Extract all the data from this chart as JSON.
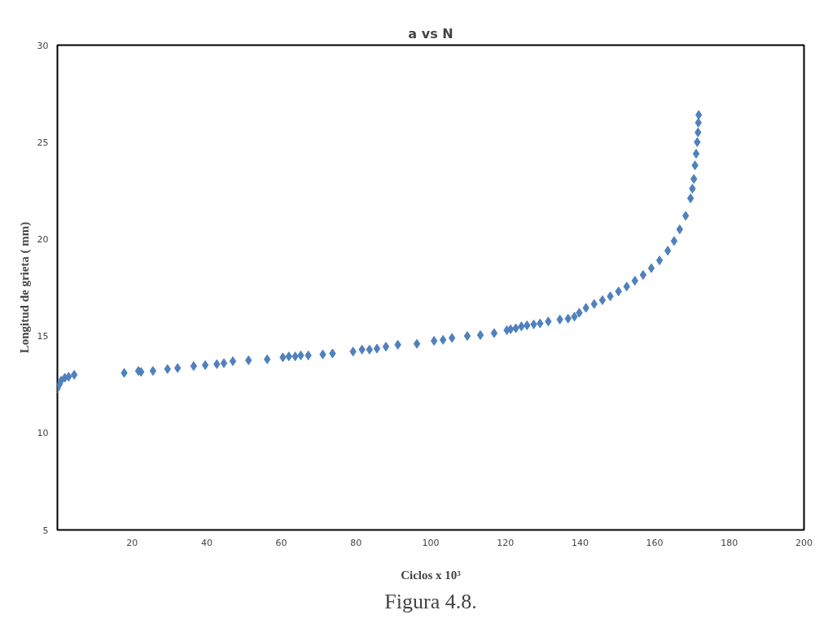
{
  "chart_data": {
    "type": "scatter",
    "title": "a vs N",
    "xlabel": "Ciclos x 10³",
    "ylabel": "Longitud de grieta ( mm)",
    "annotations": [
      "Figura 4.8."
    ],
    "marker": "diamond",
    "grid": false,
    "xlim": [
      0,
      200
    ],
    "xticks": [
      20,
      40,
      60,
      80,
      100,
      120,
      140,
      160,
      180,
      200
    ],
    "ylim": [
      5,
      30
    ],
    "yticks": [
      5,
      10,
      15,
      20,
      25,
      30
    ],
    "series": [
      {
        "color": "#4f81bd",
        "x": [
          0,
          0.5,
          1,
          2,
          3,
          4.5,
          17.9,
          21.7,
          22.4,
          25.6,
          29.5,
          32.2,
          36.5,
          39.6,
          42.7,
          44.6,
          47,
          51.2,
          56.2,
          60.4,
          62,
          63.7,
          65.2,
          67.2,
          71.1,
          73.7,
          79.2,
          81.6,
          83.6,
          85.6,
          88,
          91.2,
          96.3,
          100.9,
          103.3,
          105.7,
          109.8,
          113.3,
          117,
          120.4,
          121.4,
          122.8,
          124.3,
          125.8,
          127.6,
          129.3,
          131.5,
          134.6,
          136.8,
          138.5,
          139.8,
          141.6,
          143.8,
          146,
          148.1,
          150.3,
          152.5,
          154.7,
          156.9,
          159.1,
          161.3,
          163.5,
          165.2,
          166.7,
          168.3,
          169.6,
          170.1,
          170.5,
          170.8,
          171.1,
          171.4,
          171.6,
          171.7,
          171.8
        ],
        "values": [
          12.3,
          12.5,
          12.7,
          12.85,
          12.9,
          13.0,
          13.1,
          13.2,
          13.15,
          13.2,
          13.3,
          13.35,
          13.45,
          13.5,
          13.55,
          13.6,
          13.7,
          13.75,
          13.8,
          13.9,
          13.95,
          13.95,
          14.0,
          14.0,
          14.05,
          14.1,
          14.2,
          14.3,
          14.3,
          14.35,
          14.45,
          14.55,
          14.6,
          14.75,
          14.8,
          14.9,
          15.0,
          15.05,
          15.15,
          15.3,
          15.35,
          15.4,
          15.5,
          15.55,
          15.6,
          15.65,
          15.75,
          15.85,
          15.9,
          16.0,
          16.2,
          16.45,
          16.65,
          16.85,
          17.05,
          17.3,
          17.55,
          17.85,
          18.15,
          18.5,
          18.9,
          19.4,
          19.9,
          20.5,
          21.2,
          22.1,
          22.6,
          23.1,
          23.8,
          24.4,
          25.0,
          25.5,
          26.0,
          26.4
        ]
      }
    ]
  }
}
